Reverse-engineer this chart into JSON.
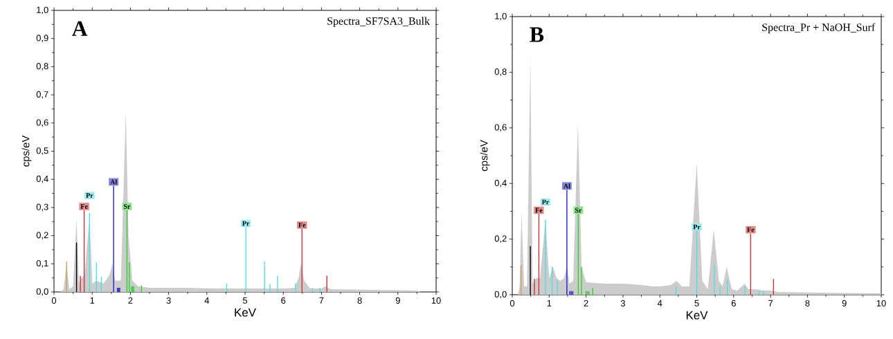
{
  "chart_data": [
    {
      "type": "area",
      "title": "A",
      "subtitle": "Spectra_SF7SA3_Bulk",
      "xlabel": "KeV",
      "ylabel": "cps/eV",
      "xlim": [
        0,
        10
      ],
      "ylim": [
        0,
        1.0
      ],
      "xticks": [
        0,
        1,
        2,
        3,
        4,
        5,
        6,
        7,
        8,
        9,
        10
      ],
      "yticks": [
        {
          "value": 0,
          "label": "0,0"
        },
        {
          "value": 0.1,
          "label": "0,1"
        },
        {
          "value": 0.2,
          "label": "0,2"
        },
        {
          "value": 0.3,
          "label": "0,3"
        },
        {
          "value": 0.4,
          "label": "0,4"
        },
        {
          "value": 0.5,
          "label": "0,5"
        },
        {
          "value": 0.6,
          "label": "0,6"
        },
        {
          "value": 0.7,
          "label": "0,7"
        },
        {
          "value": 0.8,
          "label": "0,8"
        },
        {
          "value": 0.9,
          "label": "0,9"
        },
        {
          "value": 1.0,
          "label": "1,0"
        }
      ],
      "series": [
        {
          "color": "#cccccc",
          "x": [
            0.15,
            0.25,
            0.33,
            0.4,
            0.5,
            0.59,
            0.65,
            0.72,
            0.8,
            0.93,
            1.0,
            1.1,
            1.3,
            1.45,
            1.53,
            1.6,
            1.75,
            1.88,
            1.95,
            2.05,
            2.2,
            2.5,
            3.0,
            3.5,
            4.0,
            4.5,
            5.0,
            5.5,
            6.0,
            6.3,
            6.4,
            6.46,
            6.55,
            6.7,
            7.0,
            7.1,
            7.25,
            8.0,
            9.0,
            9.5,
            9.6
          ],
          "values": [
            0,
            0.01,
            0.1,
            0.01,
            0.02,
            0.26,
            0.03,
            0.05,
            0.06,
            0.27,
            0.03,
            0.04,
            0.03,
            0.06,
            0.1,
            0.04,
            0.04,
            0.64,
            0.2,
            0.04,
            0.02,
            0.015,
            0.015,
            0.015,
            0.013,
            0.012,
            0.012,
            0.012,
            0.012,
            0.015,
            0.05,
            0.1,
            0.04,
            0.012,
            0.012,
            0.02,
            0.01,
            0.008,
            0.006,
            0.005,
            0
          ]
        },
        {
          "type": "bar",
          "color": "#c8a060",
          "x": [
            0.33
          ],
          "values": [
            0.108
          ]
        },
        {
          "type": "bar",
          "color": "#000000",
          "x": [
            0.59
          ],
          "values": [
            0.175
          ]
        },
        {
          "type": "bar",
          "color": "#d03030",
          "x": [
            0.69,
            0.79,
            6.49,
            7.14
          ],
          "values": [
            0.057,
            0.29,
            0.224,
            0.058
          ]
        },
        {
          "type": "bar",
          "color": "#50dde6",
          "x": [
            0.93,
            1.11,
            1.24,
            4.52,
            5.02,
            5.51,
            5.65,
            5.85,
            6.32,
            6.76,
            6.96
          ],
          "values": [
            0.28,
            0.105,
            0.055,
            0.03,
            0.23,
            0.108,
            0.027,
            0.057,
            0.03,
            0.015,
            0.015
          ]
        },
        {
          "type": "bar",
          "color": "#2020c0",
          "x": [
            1.56,
            1.66,
            1.69,
            1.72
          ],
          "values": [
            0.377,
            0.015,
            0.015,
            0.015
          ]
        },
        {
          "type": "bar",
          "color": "#30d030",
          "x": [
            1.91,
            1.97,
            2.03,
            2.06,
            2.09,
            2.29
          ],
          "values": [
            0.29,
            0.105,
            0.02,
            0.02,
            0.02,
            0.023
          ]
        }
      ],
      "annotations": [
        {
          "text": "Fe",
          "x": 0.79,
          "y": 0.29
        },
        {
          "text": "Pr",
          "x": 0.93,
          "y": 0.28
        },
        {
          "text": "Al",
          "x": 1.56,
          "y": 0.377
        },
        {
          "text": "Sr",
          "x": 1.91,
          "y": 0.29
        },
        {
          "text": "Pr",
          "x": 5.02,
          "y": 0.23
        },
        {
          "text": "Fe",
          "x": 6.49,
          "y": 0.224
        }
      ]
    },
    {
      "type": "area",
      "title": "B",
      "subtitle": "Spectra_Pr + NaOH_Surf",
      "xlabel": "KeV",
      "ylabel": "cps/eV",
      "xlim": [
        0,
        10
      ],
      "ylim": [
        0,
        1.0
      ],
      "xticks": [
        0,
        1,
        2,
        3,
        4,
        5,
        6,
        7,
        8,
        9,
        10
      ],
      "yticks": [
        {
          "value": 0,
          "label": "0,0"
        },
        {
          "value": 0.2,
          "label": "0,2"
        },
        {
          "value": 0.4,
          "label": "0,4"
        },
        {
          "value": 0.6,
          "label": "0,6"
        },
        {
          "value": 0.8,
          "label": "0,8"
        },
        {
          "value": 1.0,
          "label": "1,0"
        }
      ],
      "series": [
        {
          "color": "#cccccc",
          "x": [
            0.15,
            0.2,
            0.25,
            0.32,
            0.4,
            0.49,
            0.55,
            0.65,
            0.75,
            0.9,
            1.0,
            1.1,
            1.2,
            1.3,
            1.4,
            1.48,
            1.55,
            1.65,
            1.78,
            1.88,
            2.0,
            2.5,
            3.0,
            3.5,
            3.8,
            4.0,
            4.3,
            4.45,
            4.6,
            4.8,
            5.0,
            5.15,
            5.3,
            5.46,
            5.6,
            5.7,
            5.81,
            5.95,
            6.1,
            6.3,
            6.4,
            6.6,
            6.8,
            7.0,
            7.2,
            8.0,
            9.0,
            10.0
          ],
          "values": [
            0,
            0.03,
            0.3,
            0.03,
            0.03,
            0.86,
            0.04,
            0.06,
            0.06,
            0.27,
            0.06,
            0.1,
            0.06,
            0.05,
            0.06,
            0.1,
            0.04,
            0.05,
            0.615,
            0.1,
            0.045,
            0.04,
            0.04,
            0.035,
            0.03,
            0.03,
            0.035,
            0.05,
            0.03,
            0.03,
            0.475,
            0.05,
            0.02,
            0.236,
            0.05,
            0.03,
            0.1,
            0.02,
            0.015,
            0.04,
            0.02,
            0.02,
            0.015,
            0.015,
            0.01,
            0.008,
            0.006,
            0.005
          ]
        },
        {
          "type": "bar",
          "color": "#c8a060",
          "x": [
            0.24
          ],
          "values": [
            0.107
          ]
        },
        {
          "type": "bar",
          "color": "#000000",
          "x": [
            0.49
          ],
          "values": [
            0.175
          ]
        },
        {
          "type": "bar",
          "color": "#d03030",
          "x": [
            0.6,
            0.72,
            6.46,
            7.08
          ],
          "values": [
            0.057,
            0.29,
            0.22,
            0.057
          ]
        },
        {
          "type": "bar",
          "color": "#50dde6",
          "x": [
            0.9,
            1.08,
            1.22,
            4.44,
            5.0,
            5.48,
            5.63,
            5.83,
            6.31,
            6.69,
            6.81
          ],
          "values": [
            0.27,
            0.1,
            0.052,
            0.03,
            0.23,
            0.107,
            0.03,
            0.055,
            0.03,
            0.015,
            0.015
          ]
        },
        {
          "type": "bar",
          "color": "#2020c0",
          "x": [
            1.48,
            1.56,
            1.6,
            1.64
          ],
          "values": [
            0.377,
            0.013,
            0.013,
            0.013
          ]
        },
        {
          "type": "bar",
          "color": "#30d030",
          "x": [
            1.79,
            1.875,
            2.0,
            2.04,
            2.08,
            2.18
          ],
          "values": [
            0.29,
            0.1,
            0.013,
            0.013,
            0.013,
            0.025
          ]
        }
      ],
      "annotations": [
        {
          "text": "Fe",
          "x": 0.72,
          "y": 0.29
        },
        {
          "text": "Pr",
          "x": 0.9,
          "y": 0.27
        },
        {
          "text": "Al",
          "x": 1.48,
          "y": 0.377
        },
        {
          "text": "Sr",
          "x": 1.79,
          "y": 0.29
        },
        {
          "text": "Pr",
          "x": 5.0,
          "y": 0.23
        },
        {
          "text": "Fe",
          "x": 6.46,
          "y": 0.22
        }
      ]
    }
  ]
}
